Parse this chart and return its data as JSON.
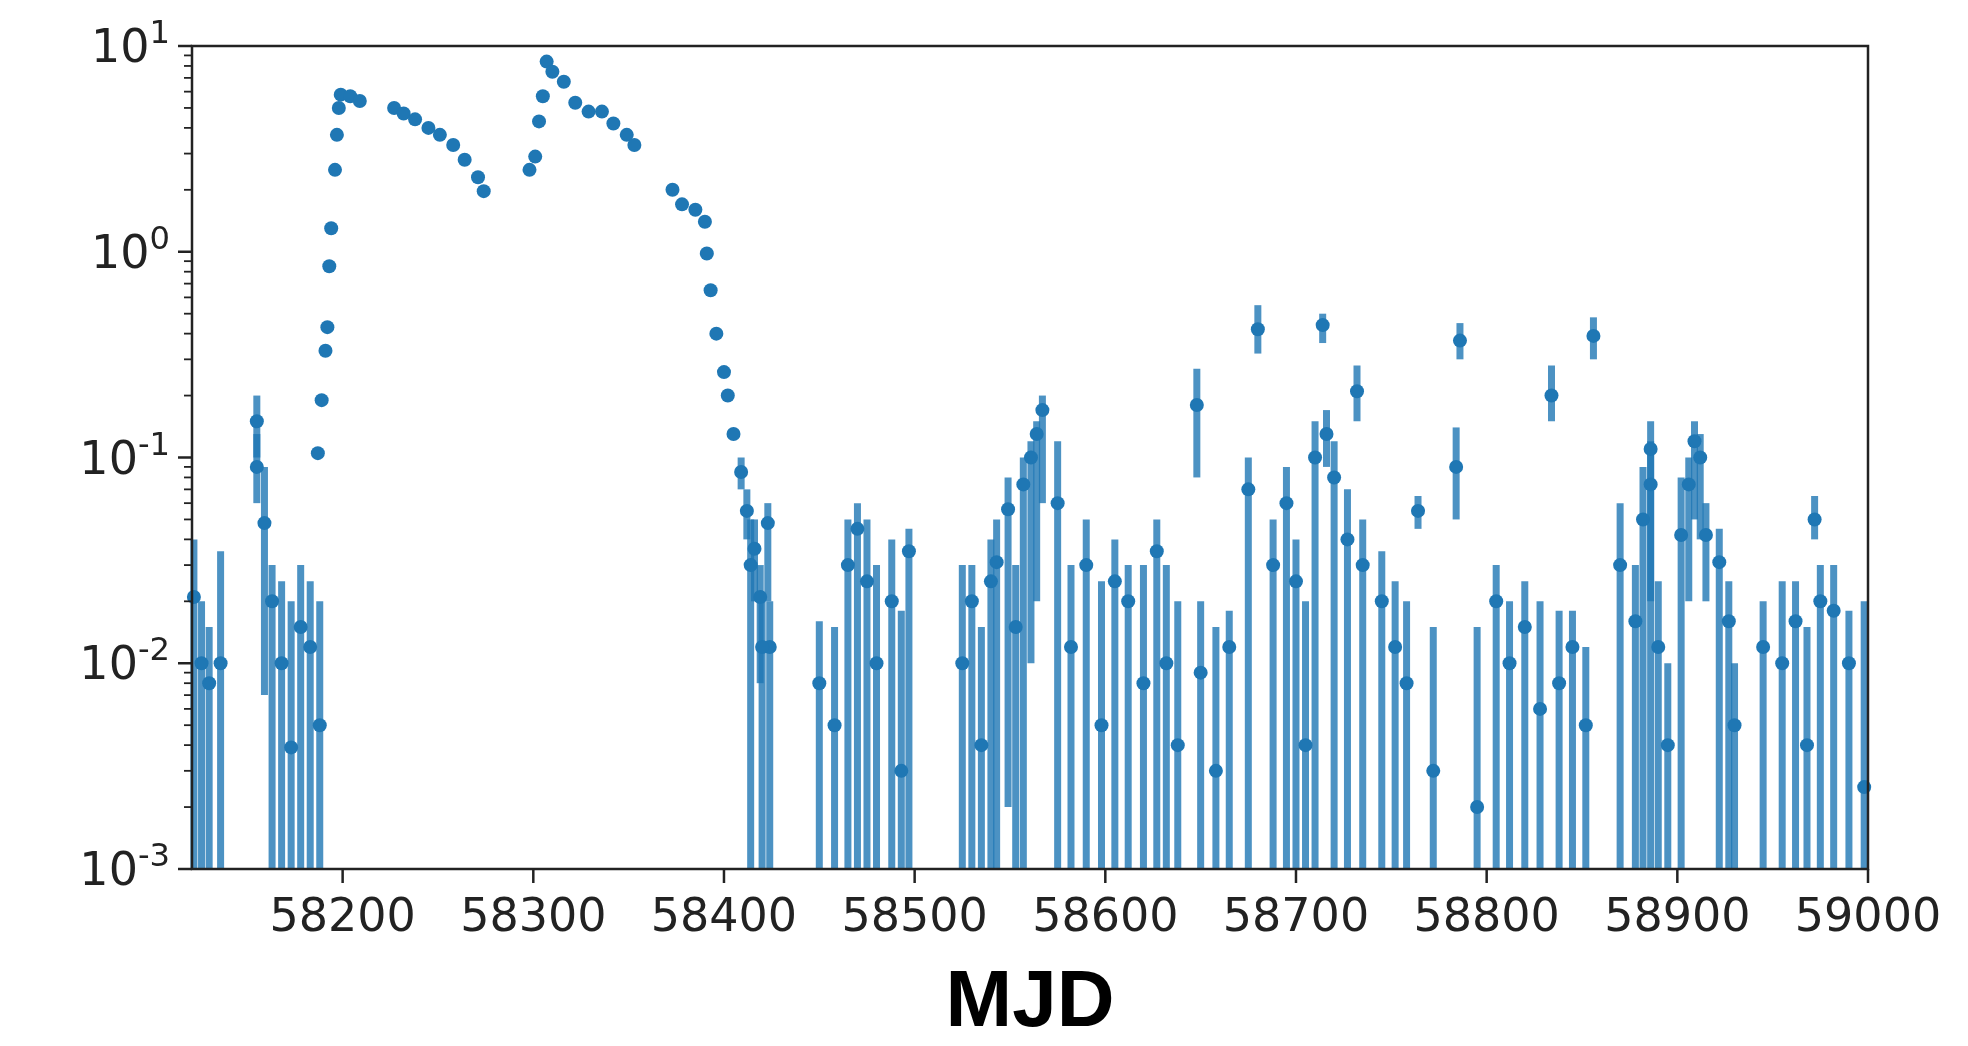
{
  "chart_data": {
    "type": "scatter",
    "xlabel": "MJD",
    "log": "y",
    "marker": "circle",
    "grid": false,
    "xlim": [
      58121,
      59000
    ],
    "xticks": [
      58200,
      58300,
      58400,
      58500,
      58600,
      58700,
      58800,
      58900,
      59000
    ],
    "ylim": [
      0.001,
      10
    ],
    "yticks": [
      {
        "value": 0.001,
        "label": "10$^{-3}$"
      },
      {
        "value": 0.002,
        "label": null
      },
      {
        "value": 0.003,
        "label": null
      },
      {
        "value": 0.004,
        "label": null
      },
      {
        "value": 0.005,
        "label": null
      },
      {
        "value": 0.006,
        "label": null
      },
      {
        "value": 0.007,
        "label": null
      },
      {
        "value": 0.008,
        "label": null
      },
      {
        "value": 0.009,
        "label": null
      },
      {
        "value": 0.01,
        "label": "10$^{-2}$"
      },
      {
        "value": 0.02,
        "label": null
      },
      {
        "value": 0.03,
        "label": null
      },
      {
        "value": 0.04,
        "label": null
      },
      {
        "value": 0.05,
        "label": null
      },
      {
        "value": 0.06,
        "label": null
      },
      {
        "value": 0.07,
        "label": null
      },
      {
        "value": 0.08,
        "label": null
      },
      {
        "value": 0.09,
        "label": null
      },
      {
        "value": 0.1,
        "label": "10$^{-1}$"
      },
      {
        "value": 0.2,
        "label": null
      },
      {
        "value": 0.3,
        "label": null
      },
      {
        "value": 0.4,
        "label": null
      },
      {
        "value": 0.5,
        "label": null
      },
      {
        "value": 0.6,
        "label": null
      },
      {
        "value": 0.7,
        "label": null
      },
      {
        "value": 0.8,
        "label": null
      },
      {
        "value": 0.9,
        "label": null
      },
      {
        "value": 1,
        "label": "10$^{0}$"
      },
      {
        "value": 2,
        "label": null
      },
      {
        "value": 3,
        "label": null
      },
      {
        "value": 4,
        "label": null
      },
      {
        "value": 5,
        "label": null
      },
      {
        "value": 6,
        "label": null
      },
      {
        "value": 7,
        "label": null
      },
      {
        "value": 8,
        "label": null
      },
      {
        "value": 9,
        "label": null
      },
      {
        "value": 10,
        "label": "10$^{1}$"
      }
    ],
    "series": [
      {
        "color": "#1f77b4",
        "x": [
          58187,
          58189,
          58191,
          58192,
          58193,
          58194,
          58196,
          58197,
          58198,
          58199,
          58204,
          58209,
          58227,
          58232,
          58238,
          58245,
          58251,
          58258,
          58264,
          58271,
          58274,
          58298,
          58301,
          58303,
          58305,
          58307,
          58310,
          58316,
          58322,
          58329,
          58336,
          58342,
          58349,
          58353,
          58373,
          58378,
          58385,
          58390,
          58391,
          58393,
          58396,
          58400,
          58402,
          58405,
          58409,
          58412,
          58416,
          58419,
          58424,
          58122,
          58126,
          58130,
          58136,
          58155,
          58155,
          58159,
          58163,
          58168,
          58173,
          58178,
          58183,
          58188,
          58414,
          58420,
          58423,
          58450,
          58458,
          58465,
          58470,
          58475,
          58480,
          58488,
          58493,
          58497,
          58525,
          58530,
          58535,
          58540,
          58543,
          58549,
          58553,
          58557,
          58561,
          58564,
          58567,
          58575,
          58582,
          58590,
          58598,
          58605,
          58612,
          58620,
          58627,
          58632,
          58638,
          58648,
          58650,
          58658,
          58665,
          58675,
          58680,
          58688,
          58695,
          58700,
          58705,
          58710,
          58714,
          58716,
          58720,
          58727,
          58732,
          58735,
          58745,
          58752,
          58758,
          58764,
          58772,
          58784,
          58786,
          58795,
          58805,
          58812,
          58820,
          58828,
          58834,
          58838,
          58845,
          58852,
          58856,
          58870,
          58878,
          58882,
          58886,
          58886,
          58890,
          58895,
          58902,
          58906,
          58909,
          58912,
          58915,
          58922,
          58927,
          58930,
          58945,
          58955,
          58962,
          58968,
          58972,
          58975,
          58982,
          58990,
          58998
        ],
        "values": [
          0.105,
          0.19,
          0.33,
          0.43,
          0.85,
          1.3,
          2.5,
          3.7,
          5,
          5.8,
          5.7,
          5.4,
          5,
          4.7,
          4.4,
          4,
          3.7,
          3.3,
          2.8,
          2.3,
          1.97,
          2.5,
          2.9,
          4.3,
          5.7,
          8.4,
          7.5,
          6.7,
          5.3,
          4.8,
          4.8,
          4.2,
          3.7,
          3.3,
          2,
          1.7,
          1.6,
          1.4,
          0.98,
          0.65,
          0.4,
          0.26,
          0.2,
          0.13,
          0.085,
          0.055,
          0.036,
          0.021,
          0.012,
          0.021,
          0.01,
          0.008,
          0.01,
          0.15,
          0.09,
          0.048,
          0.02,
          0.01,
          0.0039,
          0.015,
          0.012,
          0.005,
          0.03,
          0.012,
          0.048,
          0.008,
          0.005,
          0.03,
          0.045,
          0.025,
          0.01,
          0.02,
          0.003,
          0.035,
          0.01,
          0.02,
          0.004,
          0.025,
          0.031,
          0.056,
          0.015,
          0.074,
          0.1,
          0.13,
          0.17,
          0.06,
          0.012,
          0.03,
          0.005,
          0.025,
          0.02,
          0.008,
          0.035,
          0.01,
          0.004,
          0.18,
          0.009,
          0.003,
          0.012,
          0.07,
          0.42,
          0.03,
          0.06,
          0.025,
          0.004,
          0.1,
          0.44,
          0.13,
          0.08,
          0.04,
          0.21,
          0.03,
          0.02,
          0.012,
          0.008,
          0.055,
          0.003,
          0.09,
          0.37,
          0.002,
          0.02,
          0.01,
          0.015,
          0.006,
          0.2,
          0.008,
          0.012,
          0.005,
          0.39,
          0.03,
          0.016,
          0.05,
          0.11,
          0.074,
          0.012,
          0.004,
          0.042,
          0.074,
          0.12,
          0.1,
          0.042,
          0.031,
          0.016,
          0.005,
          0.012,
          0.01,
          0.016,
          0.004,
          0.05,
          0.02,
          0.018,
          0.01,
          0.0025
        ],
        "errors": [
          null,
          null,
          null,
          null,
          null,
          null,
          null,
          null,
          null,
          null,
          null,
          null,
          null,
          null,
          null,
          null,
          null,
          null,
          null,
          null,
          null,
          null,
          null,
          null,
          null,
          null,
          null,
          null,
          null,
          null,
          null,
          null,
          null,
          null,
          null,
          null,
          null,
          null,
          null,
          null,
          null,
          null,
          null,
          null,
          [
            0.07,
            0.1
          ],
          [
            0.04,
            0.07
          ],
          [
            0.02,
            0.05
          ],
          [
            0.008,
            0.03
          ],
          [
            0.001,
            0.02
          ],
          [
            0.001,
            0.04
          ],
          [
            0.001,
            0.02
          ],
          [
            0.001,
            0.015
          ],
          [
            0.001,
            0.035
          ],
          [
            0.1,
            0.2
          ],
          [
            0.06,
            0.13
          ],
          [
            0.007,
            0.09
          ],
          [
            0.001,
            0.03
          ],
          [
            0.001,
            0.025
          ],
          [
            0.001,
            0.02
          ],
          [
            0.001,
            0.03
          ],
          [
            0.001,
            0.025
          ],
          [
            0.001,
            0.02
          ],
          [
            0.001,
            0.05
          ],
          [
            0.001,
            0.02
          ],
          [
            0.02,
            0.06
          ],
          [
            0.001,
            0.016
          ],
          [
            0.001,
            0.015
          ],
          [
            0.001,
            0.05
          ],
          [
            0.001,
            0.06
          ],
          [
            0.001,
            0.05
          ],
          [
            0.001,
            0.03
          ],
          [
            0.001,
            0.04
          ],
          [
            0.001,
            0.018
          ],
          [
            0.001,
            0.045
          ],
          [
            0.001,
            0.03
          ],
          [
            0.001,
            0.03
          ],
          [
            0.001,
            0.015
          ],
          [
            0.001,
            0.04
          ],
          [
            0.001,
            0.05
          ],
          [
            0.002,
            0.08
          ],
          [
            0.001,
            0.03
          ],
          [
            0.001,
            0.1
          ],
          [
            0.01,
            0.12
          ],
          [
            0.02,
            0.15
          ],
          [
            0.06,
            0.2
          ],
          [
            0.001,
            0.12
          ],
          [
            0.001,
            0.03
          ],
          [
            0.001,
            0.05
          ],
          [
            0.001,
            0.025
          ],
          [
            0.001,
            0.04
          ],
          [
            0.001,
            0.03
          ],
          [
            0.001,
            0.03
          ],
          [
            0.001,
            0.05
          ],
          [
            0.001,
            0.03
          ],
          [
            0.001,
            0.02
          ],
          [
            0.08,
            0.27
          ],
          [
            0.001,
            0.02
          ],
          [
            0.001,
            0.015
          ],
          [
            0.001,
            0.018
          ],
          [
            0.001,
            0.1
          ],
          [
            0.32,
            0.55
          ],
          [
            0.001,
            0.05
          ],
          [
            0.001,
            0.09
          ],
          [
            0.001,
            0.04
          ],
          [
            0.001,
            0.02
          ],
          [
            0.001,
            0.15
          ],
          [
            0.36,
            0.5
          ],
          [
            0.09,
            0.17
          ],
          [
            0.001,
            0.12
          ],
          [
            0.001,
            0.07
          ],
          [
            0.15,
            0.28
          ],
          [
            0.001,
            0.05
          ],
          [
            0.001,
            0.035
          ],
          [
            0.001,
            0.025
          ],
          [
            0.001,
            0.02
          ],
          [
            0.045,
            0.065
          ],
          [
            0.001,
            0.015
          ],
          [
            0.05,
            0.14
          ],
          [
            0.3,
            0.45
          ],
          [
            0.001,
            0.015
          ],
          [
            0.001,
            0.03
          ],
          [
            0.001,
            0.02
          ],
          [
            0.001,
            0.025
          ],
          [
            0.001,
            0.02
          ],
          [
            0.15,
            0.28
          ],
          [
            0.001,
            0.018
          ],
          [
            0.001,
            0.018
          ],
          [
            0.001,
            0.012
          ],
          [
            0.3,
            0.48
          ],
          [
            0.001,
            0.06
          ],
          [
            0.001,
            0.03
          ],
          [
            0.001,
            0.09
          ],
          [
            0.02,
            0.15
          ],
          [
            0.001,
            0.12
          ],
          [
            0.001,
            0.025
          ],
          [
            0.001,
            0.01
          ],
          [
            0.001,
            0.08
          ],
          [
            0.02,
            0.1
          ],
          [
            0.05,
            0.15
          ],
          [
            0.04,
            0.13
          ],
          [
            0.02,
            0.06
          ],
          [
            0.001,
            0.045
          ],
          [
            0.001,
            0.025
          ],
          [
            0.001,
            0.01
          ],
          [
            0.001,
            0.02
          ],
          [
            0.001,
            0.025
          ],
          [
            0.001,
            0.025
          ],
          [
            0.001,
            0.015
          ],
          [
            0.04,
            0.065
          ],
          [
            0.001,
            0.03
          ],
          [
            0.001,
            0.03
          ],
          [
            0.001,
            0.018
          ],
          [
            0.001,
            0.02
          ]
        ]
      }
    ]
  }
}
